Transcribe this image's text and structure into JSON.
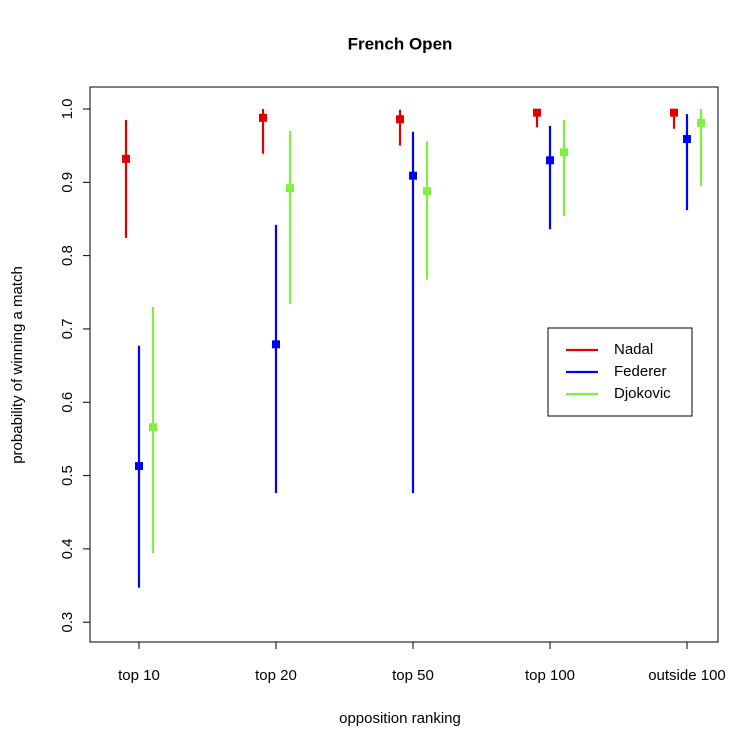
{
  "chart_data": {
    "type": "errorbar",
    "title": "French Open",
    "xlabel": "opposition ranking",
    "ylabel": "probability of winning a match",
    "categories": [
      "top 10",
      "top 20",
      "top 50",
      "top 100",
      "outside 100"
    ],
    "series": [
      {
        "name": "Nadal",
        "color": "#e00000",
        "values": [
          0.932,
          0.988,
          0.986,
          0.995,
          0.995
        ],
        "lower": [
          0.824,
          0.939,
          0.95,
          0.975,
          0.973
        ],
        "upper": [
          0.985,
          1.0,
          0.999,
          1.0,
          1.0
        ]
      },
      {
        "name": "Federer",
        "color": "#0000ff",
        "values": [
          0.513,
          0.679,
          0.909,
          0.93,
          0.959
        ],
        "lower": [
          0.347,
          0.476,
          0.476,
          0.836,
          0.862
        ],
        "upper": [
          0.677,
          0.842,
          0.969,
          0.977,
          0.993
        ]
      },
      {
        "name": "Djokovic",
        "color": "#80f040",
        "values": [
          0.566,
          0.892,
          0.888,
          0.941,
          0.981
        ],
        "lower": [
          0.394,
          0.734,
          0.767,
          0.854,
          0.895
        ],
        "upper": [
          0.73,
          0.97,
          0.956,
          0.985,
          1.0
        ]
      }
    ],
    "ylim": [
      0.273,
      1.03
    ],
    "yticks": [
      0.3,
      0.4,
      0.5,
      0.6,
      0.7,
      0.8,
      0.9,
      {
        "value": 1.0,
        "label": "1.0"
      }
    ],
    "legend": "right"
  }
}
